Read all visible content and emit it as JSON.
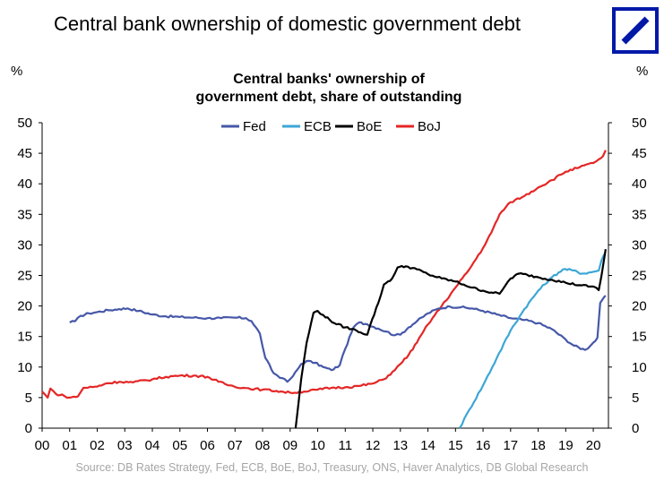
{
  "page": {
    "title": "Central bank ownership of domestic government debt",
    "source": "Source: DB Rates Strategy, Fed, ECB, BoE, BoJ, Treasury, ONS, Haver Analytics, DB Global Research"
  },
  "logo": {
    "name": "deutsche-bank-logo",
    "color": "#0018A8"
  },
  "chart_data": {
    "type": "line",
    "title": "Central banks' ownership of government debt, share of outstanding",
    "title_lines": [
      "Central banks' ownership of",
      "government debt, share of outstanding"
    ],
    "ylabel_left": "%",
    "ylabel_right": "%",
    "xlabel": "",
    "xlim": [
      2000,
      2020.55
    ],
    "ylim": [
      0,
      50
    ],
    "yticks": [
      0,
      5,
      10,
      15,
      20,
      25,
      30,
      35,
      40,
      45,
      50
    ],
    "xticks": [
      {
        "v": 2000,
        "label": "00"
      },
      {
        "v": 2001,
        "label": "01"
      },
      {
        "v": 2002,
        "label": "02"
      },
      {
        "v": 2003,
        "label": "03"
      },
      {
        "v": 2004,
        "label": "04"
      },
      {
        "v": 2005,
        "label": "05"
      },
      {
        "v": 2006,
        "label": "06"
      },
      {
        "v": 2007,
        "label": "07"
      },
      {
        "v": 2008,
        "label": "08"
      },
      {
        "v": 2009,
        "label": "09"
      },
      {
        "v": 2010,
        "label": "10"
      },
      {
        "v": 2011,
        "label": "11"
      },
      {
        "v": 2012,
        "label": "12"
      },
      {
        "v": 2013,
        "label": "13"
      },
      {
        "v": 2014,
        "label": "14"
      },
      {
        "v": 2015,
        "label": "15"
      },
      {
        "v": 2016,
        "label": "16"
      },
      {
        "v": 2017,
        "label": "17"
      },
      {
        "v": 2018,
        "label": "18"
      },
      {
        "v": 2019,
        "label": "19"
      },
      {
        "v": 2020,
        "label": "20"
      }
    ],
    "grid": false,
    "legend_position": "top-center",
    "series": [
      {
        "name": "Fed",
        "color": "#4658A8",
        "points": [
          [
            2001.0,
            17.3
          ],
          [
            2001.2,
            17.5
          ],
          [
            2001.4,
            18.4
          ],
          [
            2001.7,
            18.8
          ],
          [
            2002.0,
            19.0
          ],
          [
            2002.4,
            19.3
          ],
          [
            2002.8,
            19.5
          ],
          [
            2003.1,
            19.6
          ],
          [
            2003.5,
            19.2
          ],
          [
            2004.0,
            18.6
          ],
          [
            2004.5,
            18.3
          ],
          [
            2005.0,
            18.2
          ],
          [
            2005.5,
            18.1
          ],
          [
            2006.0,
            18.0
          ],
          [
            2006.5,
            18.0
          ],
          [
            2007.0,
            18.1
          ],
          [
            2007.4,
            18.0
          ],
          [
            2007.6,
            17.5
          ],
          [
            2007.9,
            15.5
          ],
          [
            2008.1,
            11.5
          ],
          [
            2008.4,
            9.0
          ],
          [
            2008.7,
            8.2
          ],
          [
            2008.9,
            7.6
          ],
          [
            2009.1,
            8.5
          ],
          [
            2009.4,
            10.5
          ],
          [
            2009.6,
            11.0
          ],
          [
            2009.9,
            10.7
          ],
          [
            2010.2,
            10.0
          ],
          [
            2010.5,
            9.5
          ],
          [
            2010.8,
            10.3
          ],
          [
            2011.0,
            13.0
          ],
          [
            2011.3,
            16.5
          ],
          [
            2011.5,
            17.3
          ],
          [
            2011.8,
            17.0
          ],
          [
            2012.2,
            16.3
          ],
          [
            2012.5,
            15.8
          ],
          [
            2012.8,
            15.2
          ],
          [
            2013.0,
            15.3
          ],
          [
            2013.3,
            16.5
          ],
          [
            2013.6,
            17.5
          ],
          [
            2014.0,
            18.8
          ],
          [
            2014.4,
            19.6
          ],
          [
            2014.8,
            19.9
          ],
          [
            2015.2,
            19.8
          ],
          [
            2015.6,
            19.6
          ],
          [
            2016.0,
            19.2
          ],
          [
            2016.5,
            18.6
          ],
          [
            2017.0,
            18.0
          ],
          [
            2017.5,
            17.7
          ],
          [
            2018.0,
            17.2
          ],
          [
            2018.5,
            16.2
          ],
          [
            2019.0,
            14.5
          ],
          [
            2019.3,
            13.5
          ],
          [
            2019.7,
            12.8
          ],
          [
            2019.9,
            13.5
          ],
          [
            2020.0,
            14.0
          ],
          [
            2020.15,
            14.8
          ],
          [
            2020.25,
            20.5
          ],
          [
            2020.4,
            21.5
          ],
          [
            2020.45,
            21.7
          ]
        ]
      },
      {
        "name": "ECB",
        "color": "#3DA6D6",
        "points": [
          [
            2015.15,
            0.0
          ],
          [
            2015.5,
            3.0
          ],
          [
            2016.0,
            7.0
          ],
          [
            2016.5,
            11.5
          ],
          [
            2017.0,
            16.0
          ],
          [
            2017.5,
            19.5
          ],
          [
            2018.0,
            22.5
          ],
          [
            2018.5,
            24.7
          ],
          [
            2018.9,
            26.0
          ],
          [
            2019.2,
            25.9
          ],
          [
            2019.6,
            25.3
          ],
          [
            2020.0,
            25.6
          ],
          [
            2020.2,
            25.8
          ],
          [
            2020.3,
            27.5
          ],
          [
            2020.4,
            28.5
          ]
        ]
      },
      {
        "name": "BoE",
        "color": "#000000",
        "points": [
          [
            2009.2,
            0.0
          ],
          [
            2009.4,
            8.0
          ],
          [
            2009.6,
            14.0
          ],
          [
            2009.85,
            18.9
          ],
          [
            2010.0,
            19.2
          ],
          [
            2010.2,
            18.5
          ],
          [
            2010.6,
            17.2
          ],
          [
            2011.0,
            16.5
          ],
          [
            2011.4,
            16.0
          ],
          [
            2011.8,
            15.3
          ],
          [
            2011.9,
            16.8
          ],
          [
            2012.2,
            20.5
          ],
          [
            2012.4,
            23.5
          ],
          [
            2012.7,
            24.5
          ],
          [
            2012.9,
            26.3
          ],
          [
            2013.2,
            26.5
          ],
          [
            2013.6,
            26.0
          ],
          [
            2014.0,
            25.2
          ],
          [
            2014.5,
            24.5
          ],
          [
            2015.0,
            24.0
          ],
          [
            2015.3,
            23.5
          ],
          [
            2015.6,
            23.0
          ],
          [
            2016.0,
            22.5
          ],
          [
            2016.3,
            22.2
          ],
          [
            2016.6,
            22.0
          ],
          [
            2016.8,
            23.3
          ],
          [
            2017.0,
            24.5
          ],
          [
            2017.3,
            25.3
          ],
          [
            2017.6,
            25.1
          ],
          [
            2018.0,
            24.7
          ],
          [
            2018.5,
            24.3
          ],
          [
            2019.0,
            23.8
          ],
          [
            2019.5,
            23.4
          ],
          [
            2019.9,
            23.2
          ],
          [
            2020.1,
            23.0
          ],
          [
            2020.2,
            22.6
          ],
          [
            2020.3,
            25.0
          ],
          [
            2020.45,
            29.3
          ]
        ]
      },
      {
        "name": "BoJ",
        "color": "#E32726",
        "points": [
          [
            2000.0,
            6.0
          ],
          [
            2000.2,
            5.0
          ],
          [
            2000.3,
            6.5
          ],
          [
            2000.5,
            5.6
          ],
          [
            2000.8,
            5.3
          ],
          [
            2001.0,
            5.0
          ],
          [
            2001.3,
            5.2
          ],
          [
            2001.5,
            6.6
          ],
          [
            2002.0,
            6.8
          ],
          [
            2002.3,
            7.3
          ],
          [
            2002.8,
            7.6
          ],
          [
            2003.3,
            7.5
          ],
          [
            2004.0,
            8.0
          ],
          [
            2004.5,
            8.4
          ],
          [
            2005.0,
            8.6
          ],
          [
            2005.5,
            8.6
          ],
          [
            2006.0,
            8.4
          ],
          [
            2006.4,
            7.6
          ],
          [
            2006.8,
            7.0
          ],
          [
            2007.3,
            6.6
          ],
          [
            2008.0,
            6.3
          ],
          [
            2008.5,
            6.1
          ],
          [
            2009.0,
            5.8
          ],
          [
            2009.5,
            6.0
          ],
          [
            2010.0,
            6.3
          ],
          [
            2010.5,
            6.6
          ],
          [
            2011.0,
            6.7
          ],
          [
            2011.5,
            6.9
          ],
          [
            2012.0,
            7.3
          ],
          [
            2012.4,
            8.0
          ],
          [
            2012.8,
            9.5
          ],
          [
            2013.0,
            10.5
          ],
          [
            2013.3,
            12.0
          ],
          [
            2013.6,
            14.0
          ],
          [
            2014.0,
            17.0
          ],
          [
            2014.5,
            20.0
          ],
          [
            2015.0,
            23.0
          ],
          [
            2015.5,
            26.0
          ],
          [
            2016.0,
            29.5
          ],
          [
            2016.3,
            32.0
          ],
          [
            2016.6,
            35.0
          ],
          [
            2017.0,
            37.0
          ],
          [
            2017.5,
            38.0
          ],
          [
            2018.0,
            39.4
          ],
          [
            2018.5,
            40.6
          ],
          [
            2019.0,
            42.0
          ],
          [
            2019.5,
            42.7
          ],
          [
            2020.0,
            43.4
          ],
          [
            2020.2,
            44.0
          ],
          [
            2020.35,
            44.5
          ],
          [
            2020.45,
            45.5
          ]
        ]
      }
    ]
  }
}
